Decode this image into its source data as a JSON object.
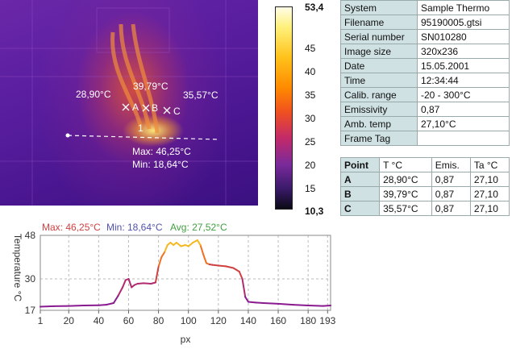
{
  "thermal": {
    "marker_a": "A",
    "marker_b": "B",
    "marker_c": "C",
    "point_a_temp": "28,90°C",
    "point_b_temp": "39,79°C",
    "point_c_temp": "35,57°C",
    "line_number": "1",
    "line_max": "Max: 46,25°C",
    "line_min": "Min:  18,64°C"
  },
  "scale": {
    "max": "53,4",
    "min": "10,3",
    "ticks": [
      "45",
      "40",
      "35",
      "30",
      "25",
      "20",
      "15"
    ]
  },
  "info": {
    "rows": [
      {
        "key": "System",
        "value": "Sample Thermo"
      },
      {
        "key": "Filename",
        "value": "95190005.gtsi"
      },
      {
        "key": "Serial number",
        "value": "SN010280"
      },
      {
        "key": "Image size",
        "value": "320x236"
      },
      {
        "key": "Date",
        "value": "15.05.2001"
      },
      {
        "key": "Time",
        "value": "12:34:44"
      },
      {
        "key": "Calib. range",
        "value": "-20 - 300°C"
      },
      {
        "key": "Emissivity",
        "value": "0,87"
      },
      {
        "key": "Amb. temp",
        "value": "27,10°C"
      },
      {
        "key": "Frame Tag",
        "value": ""
      }
    ]
  },
  "points": {
    "headers": [
      "Point",
      "T °C",
      "Emis.",
      "Ta °C"
    ],
    "rows": [
      {
        "id": "A",
        "t": "28,90°C",
        "emis": "0,87",
        "ta": "27,10"
      },
      {
        "id": "B",
        "t": "39,79°C",
        "emis": "0,87",
        "ta": "27,10"
      },
      {
        "id": "C",
        "t": "35,57°C",
        "emis": "0,87",
        "ta": "27,10"
      }
    ]
  },
  "profile": {
    "max_label": "Max: 46,25°C",
    "min_label": "Min: 18,64°C",
    "avg_label": "Avg: 27,52°C",
    "colors": {
      "max": "#d04040",
      "min": "#5050b0",
      "avg": "#40a040"
    }
  },
  "chart_data": {
    "type": "line",
    "title": "",
    "xlabel": "px",
    "ylabel": "Temperature °C",
    "xlim": [
      1,
      195
    ],
    "ylim": [
      17,
      48
    ],
    "xticks": [
      "1",
      "20",
      "40",
      "60",
      "80",
      "100",
      "120",
      "140",
      "160",
      "180",
      "193"
    ],
    "yticks": [
      "48",
      "30",
      "17"
    ],
    "grid": true,
    "series": [
      {
        "x": [
          1,
          10,
          20,
          30,
          40,
          45,
          50,
          53,
          56,
          58,
          60,
          62,
          64,
          66,
          70,
          75,
          78,
          80,
          82,
          84,
          86,
          88,
          90,
          92,
          95,
          98,
          100,
          103,
          106,
          108,
          110,
          112,
          114,
          116,
          120,
          125,
          130,
          134,
          136,
          138,
          140,
          145,
          150,
          160,
          170,
          180,
          190,
          195
        ],
        "y": [
          18.5,
          18.7,
          18.8,
          19.0,
          19.1,
          19.3,
          20.0,
          23.0,
          26.5,
          29.5,
          30.0,
          26.5,
          27.5,
          28.0,
          28.2,
          28.0,
          28.5,
          35.0,
          39.0,
          41.0,
          44.0,
          45.0,
          44.0,
          45.0,
          43.5,
          44.0,
          43.5,
          45.0,
          46.0,
          44.0,
          40.0,
          36.5,
          36.0,
          35.8,
          35.5,
          35.2,
          34.5,
          33.0,
          30.0,
          22.5,
          20.5,
          20.2,
          20.0,
          19.7,
          19.3,
          19.0,
          18.8,
          19.0
        ]
      }
    ]
  }
}
